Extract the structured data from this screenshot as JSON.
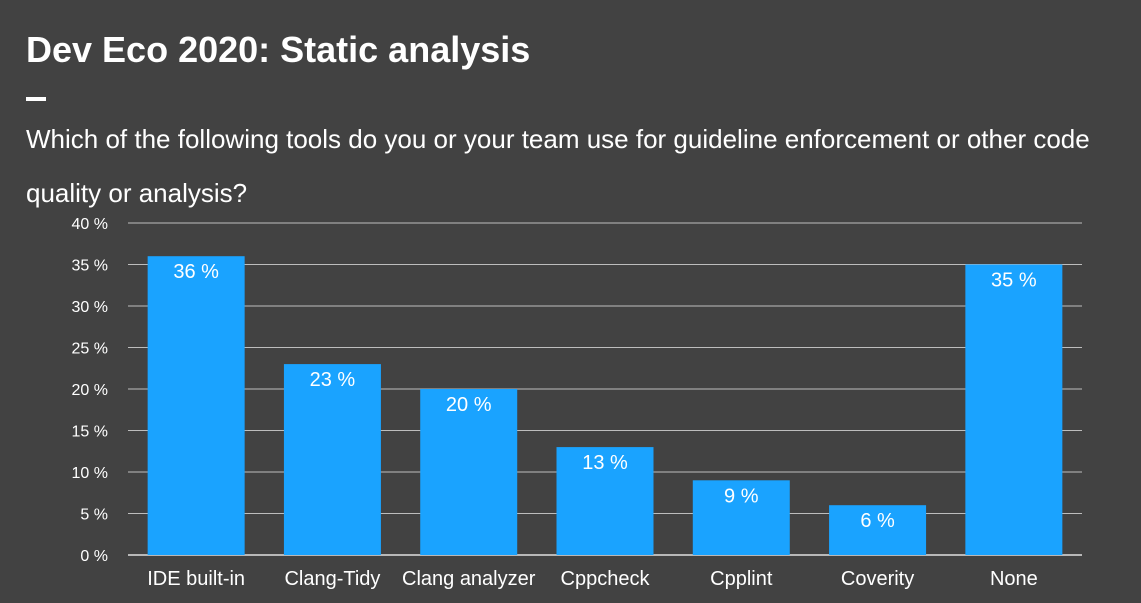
{
  "slide": {
    "title": "Dev Eco 2020: Static analysis",
    "subtitle": "Which of the following tools do you or your team use for guideline enforcement or other code quality or analysis?"
  },
  "colors": {
    "background": "#424242",
    "bar": "#1AA3FF",
    "gridline": "#BDBDBD",
    "text": "#FFFFFF"
  },
  "chart_data": {
    "type": "bar",
    "categories": [
      "IDE built-in",
      "Clang-Tidy",
      "Clang analyzer",
      "Cppcheck",
      "Cpplint",
      "Coverity",
      "None"
    ],
    "values": [
      36,
      23,
      20,
      13,
      9,
      6,
      35
    ],
    "data_labels": [
      "36 %",
      "23 %",
      "20 %",
      "13 %",
      "9 %",
      "6 %",
      "35 %"
    ],
    "ylim": [
      0,
      40
    ],
    "y_ticks": [
      0,
      5,
      10,
      15,
      20,
      25,
      30,
      35,
      40
    ],
    "y_tick_labels": [
      "0 %",
      "5 %",
      "10 %",
      "15 %",
      "20 %",
      "25 %",
      "30 %",
      "35 %",
      "40 %"
    ],
    "grid": true,
    "legend": "none"
  }
}
